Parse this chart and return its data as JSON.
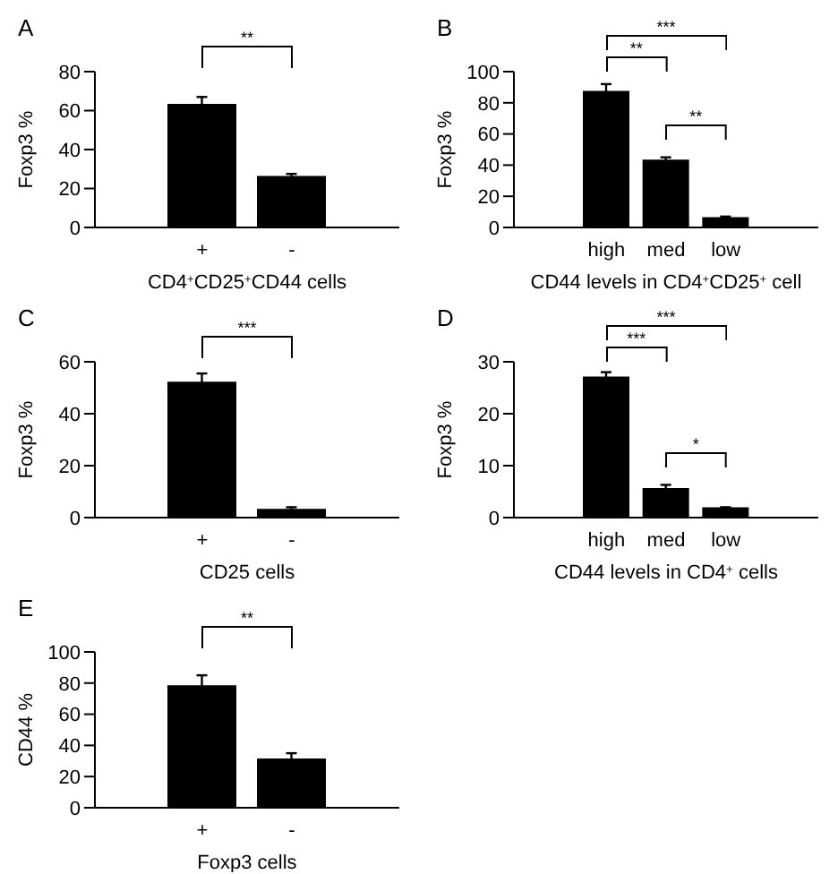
{
  "chart_data": [
    {
      "type": "bar",
      "title": "A",
      "xlabel": "CD4$^{+}$CD25$^{+}$CD44 cells",
      "ylabel": "Foxp3 %",
      "categories": [
        "+",
        "-"
      ],
      "values": [
        63,
        26
      ],
      "errors": [
        4,
        1.5
      ],
      "color": "#000000",
      "ylim": [
        0,
        80
      ],
      "yticks": [
        0,
        20,
        40,
        60,
        80
      ],
      "annotations": [
        "**"
      ]
    },
    {
      "type": "bar",
      "title": "B",
      "xlabel": "CD44 levels in CD4$^{+}$CD25$^{+}$ cell",
      "ylabel": "Foxp3 %",
      "categories": [
        "high",
        "med",
        "low"
      ],
      "values": [
        87,
        43,
        6
      ],
      "errors": [
        5,
        2,
        1
      ],
      "color": "#000000",
      "ylim": [
        0,
        100
      ],
      "yticks": [
        0,
        20,
        40,
        60,
        80,
        100
      ],
      "annotations": [
        "***",
        "**",
        "**"
      ]
    },
    {
      "type": "bar",
      "title": "C",
      "xlabel": "CD25 cells",
      "ylabel": "Foxp3 %",
      "categories": [
        "+",
        "-"
      ],
      "values": [
        52,
        3
      ],
      "errors": [
        3.5,
        1
      ],
      "color": "#000000",
      "ylim": [
        0,
        60
      ],
      "yticks": [
        0,
        20,
        40,
        60
      ],
      "annotations": [
        "***"
      ]
    },
    {
      "type": "bar",
      "title": "D",
      "xlabel": "CD44 levels in CD4$^{+}$ cells",
      "ylabel": "Foxp3 %",
      "categories": [
        "high",
        "med",
        "low"
      ],
      "values": [
        27,
        5.5,
        1.8
      ],
      "errors": [
        1,
        0.8,
        0.2
      ],
      "color": "#000000",
      "ylim": [
        0,
        30
      ],
      "yticks": [
        0,
        10,
        20,
        30
      ],
      "annotations": [
        "***",
        "***",
        "*"
      ]
    },
    {
      "type": "bar",
      "title": "E",
      "xlabel": "Foxp3 cells",
      "ylabel": "CD44 %",
      "categories": [
        "+",
        "-"
      ],
      "values": [
        78,
        31
      ],
      "errors": [
        7,
        4
      ],
      "color": "#000000",
      "ylim": [
        0,
        100
      ],
      "yticks": [
        0,
        20,
        40,
        60,
        80,
        100
      ],
      "annotations": [
        "**"
      ]
    }
  ]
}
